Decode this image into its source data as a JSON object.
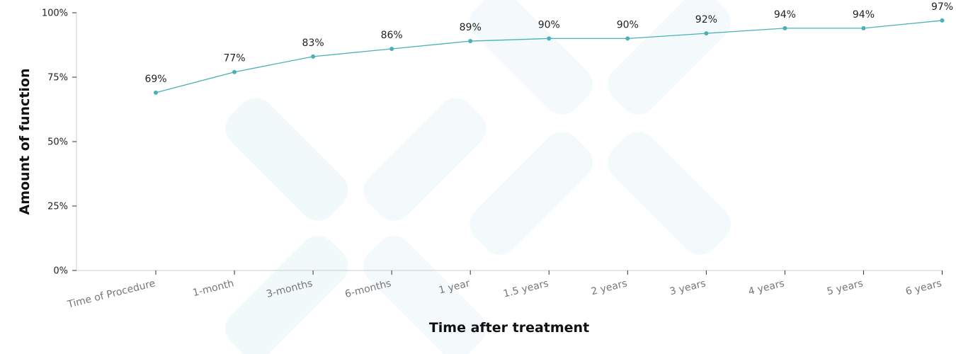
{
  "chart_data": {
    "type": "line",
    "title": "",
    "xlabel": "Time after treatment",
    "ylabel": "Amount of function",
    "categories": [
      "Time of Procedure",
      "1-month",
      "3-months",
      "6-months",
      "1 year",
      "1.5 years",
      "2 years",
      "3 years",
      "4 years",
      "5 years",
      "6 years"
    ],
    "series": [
      {
        "values": [
          69,
          77,
          83,
          86,
          89,
          90,
          90,
          92,
          94,
          94,
          97
        ]
      }
    ],
    "data_labels": [
      "69%",
      "77%",
      "83%",
      "86%",
      "89%",
      "90%",
      "90%",
      "92%",
      "94%",
      "94%",
      "97%"
    ],
    "ylim": [
      0,
      100
    ],
    "yticks": [
      0,
      25,
      50,
      75,
      100
    ],
    "ytick_labels": [
      "0%",
      "25%",
      "50%",
      "75%",
      "100%"
    ],
    "grid": false,
    "legend": "none",
    "colors": {
      "line": "#4ab0b8",
      "axis": "#cccccc",
      "watermark": "#4ab0b8"
    }
  }
}
